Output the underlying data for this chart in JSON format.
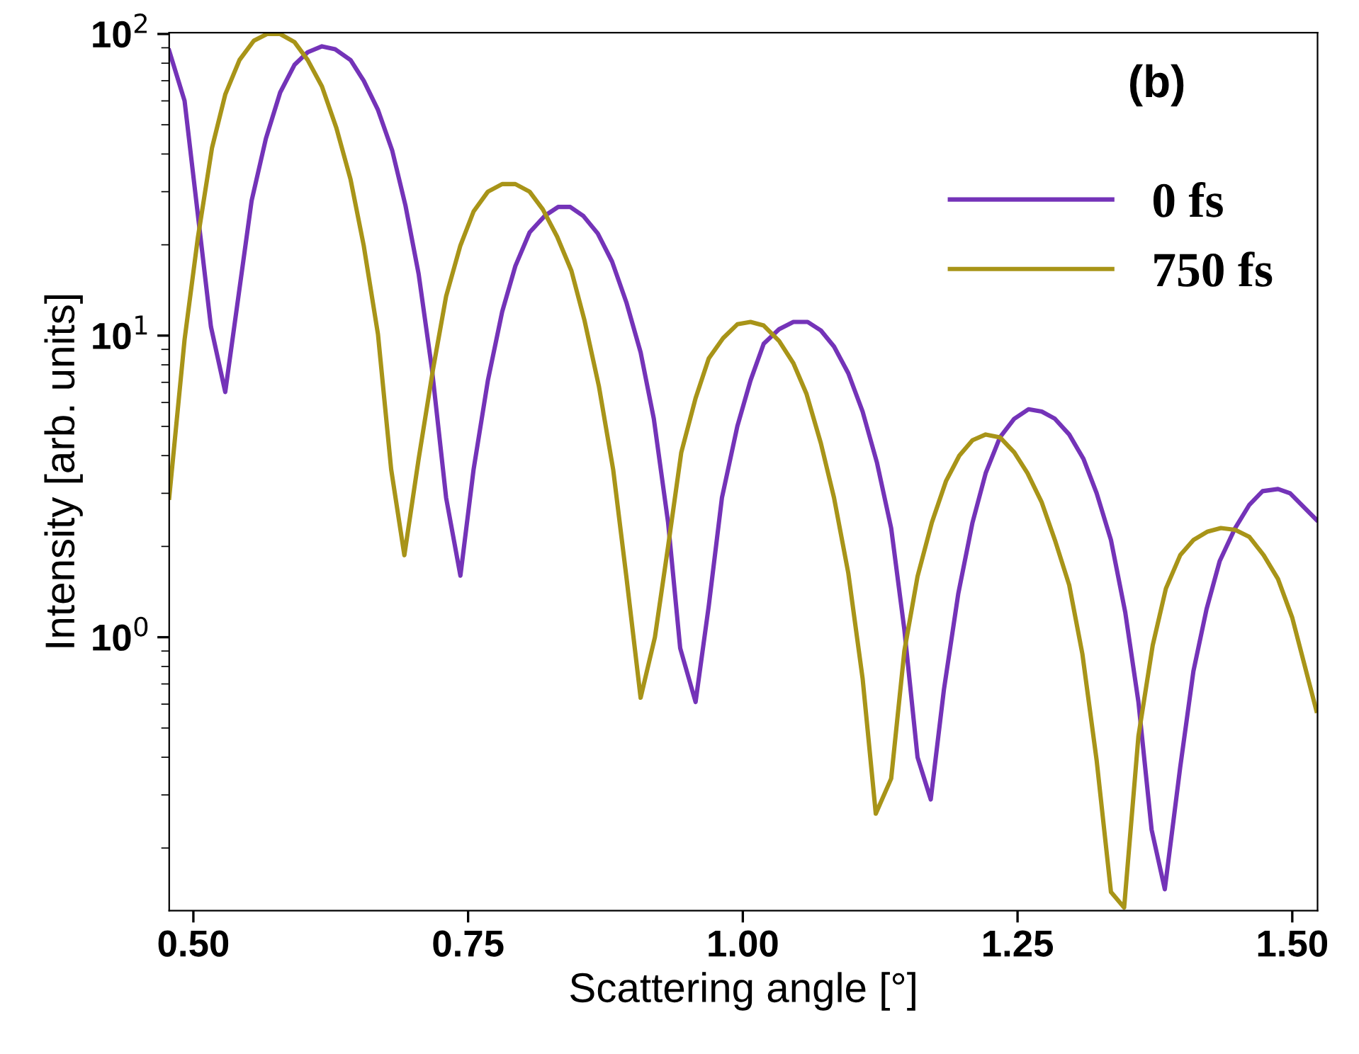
{
  "chart_data": {
    "type": "line",
    "xlabel": "Scattering angle [°]",
    "ylabel": "Intensity [arb. units]",
    "annotations": [
      "(b)"
    ],
    "log": "y",
    "xlim": [
      0.478,
      1.523
    ],
    "ylim": [
      0.124,
      101
    ],
    "xticks": [
      {
        "value": 0.5,
        "label": "0.50"
      },
      {
        "value": 0.75,
        "label": "0.75"
      },
      {
        "value": 1.0,
        "label": "1.00"
      },
      {
        "value": 1.25,
        "label": "1.25"
      },
      {
        "value": 1.5,
        "label": "1.50"
      }
    ],
    "yticks": [
      {
        "value": 1,
        "label": "10$^{0}$"
      },
      {
        "value": 10,
        "label": "10$^{1}$"
      },
      {
        "value": 100,
        "label": "10$^{2}$"
      }
    ],
    "grid": false,
    "legend": "top right",
    "marker": "none",
    "line_style": "solid",
    "series": [
      {
        "name": "0 fs",
        "color": "#7433b8",
        "x": [
          0.478,
          0.492,
          0.516,
          0.529,
          0.553,
          0.566,
          0.579,
          0.592,
          0.604,
          0.617,
          0.629,
          0.643,
          0.655,
          0.668,
          0.681,
          0.693,
          0.705,
          0.717,
          0.73,
          0.743,
          0.755,
          0.768,
          0.781,
          0.793,
          0.806,
          0.82,
          0.832,
          0.843,
          0.855,
          0.868,
          0.881,
          0.894,
          0.907,
          0.919,
          0.932,
          0.943,
          0.957,
          0.969,
          0.981,
          0.995,
          1.007,
          1.019,
          1.033,
          1.046,
          1.059,
          1.071,
          1.083,
          1.096,
          1.109,
          1.122,
          1.135,
          1.147,
          1.159,
          1.171,
          1.183,
          1.196,
          1.209,
          1.221,
          1.234,
          1.247,
          1.26,
          1.272,
          1.284,
          1.297,
          1.31,
          1.322,
          1.335,
          1.348,
          1.36,
          1.372,
          1.384,
          1.398,
          1.41,
          1.422,
          1.434,
          1.448,
          1.461,
          1.473,
          1.487,
          1.498,
          1.522
        ],
        "values": [
          88,
          60,
          10.7,
          6.5,
          28,
          45,
          64,
          79,
          87,
          91,
          89,
          82,
          70,
          56,
          41,
          27,
          16,
          7.8,
          2.9,
          1.6,
          3.6,
          7.1,
          12,
          17,
          22,
          25,
          26.7,
          26.7,
          24.9,
          21.8,
          17.6,
          12.9,
          8.8,
          5.3,
          2.4,
          0.92,
          0.61,
          1.27,
          2.9,
          5.0,
          7.1,
          9.4,
          10.5,
          11.1,
          11.1,
          10.4,
          9.2,
          7.5,
          5.6,
          3.8,
          2.3,
          1.06,
          0.4,
          0.29,
          0.67,
          1.39,
          2.4,
          3.5,
          4.6,
          5.3,
          5.7,
          5.6,
          5.3,
          4.7,
          3.9,
          3.0,
          2.1,
          1.21,
          0.61,
          0.23,
          0.146,
          0.37,
          0.77,
          1.24,
          1.79,
          2.3,
          2.75,
          3.05,
          3.1,
          3.0,
          2.45
        ]
      },
      {
        "name": "750 fs",
        "color": "#a89418",
        "x": [
          0.478,
          0.492,
          0.504,
          0.517,
          0.529,
          0.542,
          0.555,
          0.567,
          0.579,
          0.592,
          0.604,
          0.617,
          0.63,
          0.643,
          0.655,
          0.668,
          0.68,
          0.692,
          0.705,
          0.718,
          0.73,
          0.743,
          0.755,
          0.768,
          0.781,
          0.793,
          0.806,
          0.818,
          0.831,
          0.844,
          0.856,
          0.869,
          0.882,
          0.894,
          0.907,
          0.92,
          0.932,
          0.944,
          0.957,
          0.969,
          0.982,
          0.995,
          1.007,
          1.019,
          1.033,
          1.046,
          1.058,
          1.071,
          1.083,
          1.096,
          1.109,
          1.121,
          1.135,
          1.147,
          1.159,
          1.172,
          1.185,
          1.197,
          1.209,
          1.221,
          1.234,
          1.247,
          1.259,
          1.272,
          1.284,
          1.297,
          1.309,
          1.322,
          1.335,
          1.347,
          1.36,
          1.373,
          1.385,
          1.398,
          1.41,
          1.423,
          1.435,
          1.448,
          1.461,
          1.474,
          1.487,
          1.5,
          1.522
        ],
        "values": [
          2.9,
          9.7,
          21,
          42,
          63,
          82,
          95,
          100,
          100,
          94,
          82,
          67,
          49,
          33,
          19.9,
          10.1,
          3.6,
          1.87,
          3.9,
          7.7,
          13.5,
          19.9,
          25.8,
          30,
          31.8,
          31.8,
          30,
          26.2,
          21.3,
          16.4,
          11.2,
          6.8,
          3.6,
          1.59,
          0.63,
          1.0,
          2.0,
          4.1,
          6.2,
          8.4,
          9.8,
          10.9,
          11.1,
          10.8,
          9.6,
          8.1,
          6.4,
          4.4,
          2.9,
          1.63,
          0.73,
          0.26,
          0.34,
          0.9,
          1.59,
          2.4,
          3.3,
          4.0,
          4.5,
          4.7,
          4.6,
          4.1,
          3.5,
          2.8,
          2.1,
          1.49,
          0.88,
          0.39,
          0.143,
          0.127,
          0.47,
          0.94,
          1.45,
          1.87,
          2.1,
          2.24,
          2.3,
          2.27,
          2.15,
          1.87,
          1.56,
          1.16,
          0.57
        ]
      }
    ]
  }
}
